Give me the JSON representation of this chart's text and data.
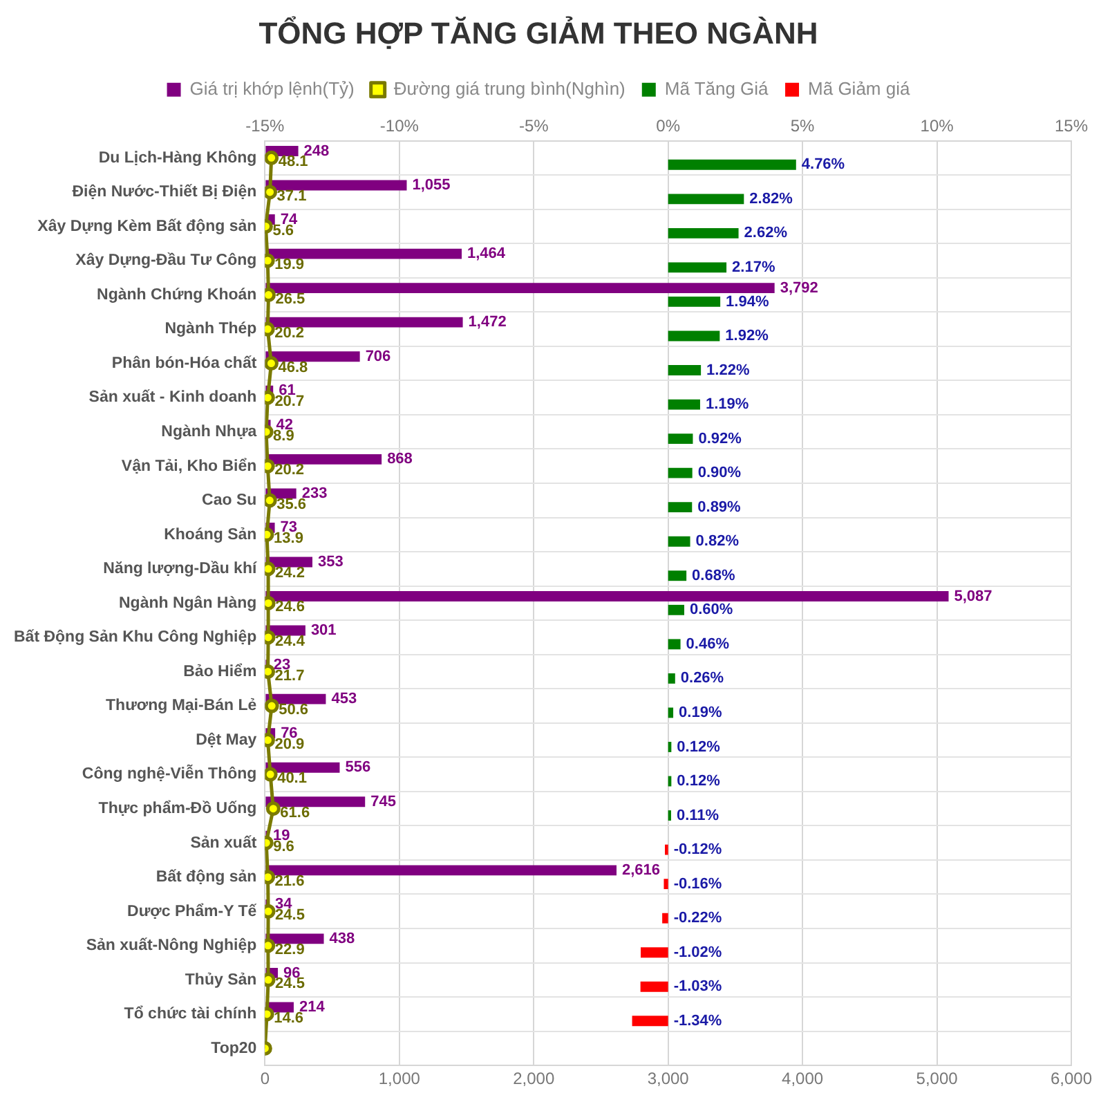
{
  "chart_data": {
    "type": "bar",
    "orientation": "horizontal",
    "title": "TỔNG HỢP TĂNG GIẢM THEO NGÀNH",
    "legend": "top",
    "grid": true,
    "categories": [
      "Du Lịch-Hàng Không",
      "Điện Nước-Thiết Bị Điện",
      "Xây Dựng Kèm Bất động sản",
      "Xây Dựng-Đầu Tư Công",
      "Ngành Chứng Khoán",
      "Ngành Thép",
      "Phân bón-Hóa chất",
      "Sản xuất - Kinh doanh",
      "Ngành Nhựa",
      "Vận Tải, Kho Biển",
      "Cao Su",
      "Khoáng Sản",
      "Năng lượng-Dầu khí",
      "Ngành Ngân Hàng",
      "Bất Động Sản Khu Công Nghiệp",
      "Bảo Hiểm",
      "Thương Mại-Bán Lẻ",
      "Dệt May",
      "Công nghệ-Viễn Thông",
      "Thực phẩm-Đồ Uống",
      "Sản xuất",
      "Bất động sản",
      "Dược Phẩm-Y Tế",
      "Sản xuất-Nông Nghiệp",
      "Thủy Sản",
      "Tổ chức tài chính",
      "Top20"
    ],
    "xlim": [
      0,
      6000
    ],
    "xticks": [
      0,
      {
        "value": 1000,
        "label": "1,000"
      },
      {
        "value": 2000,
        "label": "2,000"
      },
      {
        "value": 3000,
        "label": "3,000"
      },
      {
        "value": 4000,
        "label": "4,000"
      },
      {
        "value": 5000,
        "label": "5,000"
      },
      {
        "value": 6000,
        "label": "6,000"
      }
    ],
    "x2lim": [
      -15,
      15
    ],
    "x2ticks": [
      {
        "value": -15,
        "label": "-15%"
      },
      {
        "value": -10,
        "label": "-10%"
      },
      {
        "value": -5,
        "label": "-5%"
      },
      {
        "value": 0,
        "label": "0%"
      },
      {
        "value": 5,
        "label": "5%"
      },
      {
        "value": 10,
        "label": "10%"
      },
      {
        "value": 15,
        "label": "15%"
      }
    ],
    "series": [
      {
        "name": "Giá trị khớp lệnh(Tỷ)",
        "color": "#800080",
        "values": [
          248,
          1055,
          74,
          1464,
          3792,
          1472,
          706,
          61,
          42,
          868,
          233,
          73,
          353,
          5087,
          301,
          23,
          453,
          76,
          556,
          745,
          19,
          2616,
          34,
          438,
          96,
          214,
          null
        ],
        "value_labels": [
          "248",
          "1,055",
          "74",
          "1,464",
          "3,792",
          "1,472",
          "706",
          "61",
          "42",
          "868",
          "233",
          "73",
          "353",
          "5,087",
          "301",
          "23",
          "453",
          "76",
          "556",
          "745",
          "19",
          "2,616",
          "34",
          "438",
          "96",
          "214",
          null
        ]
      },
      {
        "name": "Đường giá trung bình(Nghìn)",
        "type": "line",
        "color": "#ffff00",
        "marker": "circle",
        "values": [
          48.1,
          37.1,
          5.6,
          19.9,
          26.5,
          20.2,
          46.8,
          20.7,
          8.9,
          20.2,
          35.6,
          13.9,
          24.2,
          24.6,
          24.4,
          21.7,
          50.6,
          20.9,
          40.1,
          61.6,
          9.6,
          21.6,
          24.5,
          22.9,
          24.5,
          14.6,
          0
        ],
        "value_labels": [
          "48.1",
          "37.1",
          "5.6",
          "19.9",
          "26.5",
          "20.2",
          "46.8",
          "20.7",
          "8.9",
          "20.2",
          "35.6",
          "13.9",
          "24.2",
          "24.6",
          "24.4",
          "21.7",
          "50.6",
          "20.9",
          "40.1",
          "61.6",
          "9.6",
          "21.6",
          "24.5",
          "22.9",
          "24.5",
          "14.6",
          null
        ]
      },
      {
        "name": "Mã Tăng Giá",
        "type": "bar",
        "axis": "x2",
        "color": "#008000",
        "values": [
          4.76,
          2.82,
          2.62,
          2.17,
          1.94,
          1.92,
          1.22,
          1.19,
          0.92,
          0.9,
          0.89,
          0.82,
          0.68,
          0.6,
          0.46,
          0.26,
          0.19,
          0.12,
          0.12,
          0.11,
          null,
          null,
          null,
          null,
          null,
          null,
          null
        ],
        "value_labels": [
          "4.76%",
          "2.82%",
          "2.62%",
          "2.17%",
          "1.94%",
          "1.92%",
          "1.22%",
          "1.19%",
          "0.92%",
          "0.90%",
          "0.89%",
          "0.82%",
          "0.68%",
          "0.60%",
          "0.46%",
          "0.26%",
          "0.19%",
          "0.12%",
          "0.12%",
          "0.11%",
          null,
          null,
          null,
          null,
          null,
          null,
          null
        ]
      },
      {
        "name": "Mã Giảm giá",
        "type": "bar",
        "axis": "x2",
        "color": "#ff0000",
        "values": [
          null,
          null,
          null,
          null,
          null,
          null,
          null,
          null,
          null,
          null,
          null,
          null,
          null,
          null,
          null,
          null,
          null,
          null,
          null,
          null,
          -0.12,
          -0.16,
          -0.22,
          -1.02,
          -1.03,
          -1.34,
          null
        ],
        "value_labels": [
          null,
          null,
          null,
          null,
          null,
          null,
          null,
          null,
          null,
          null,
          null,
          null,
          null,
          null,
          null,
          null,
          null,
          null,
          null,
          null,
          "-0.12%",
          "-0.16%",
          "-0.22%",
          "-1.02%",
          "-1.03%",
          "-1.34%",
          null
        ]
      }
    ]
  }
}
